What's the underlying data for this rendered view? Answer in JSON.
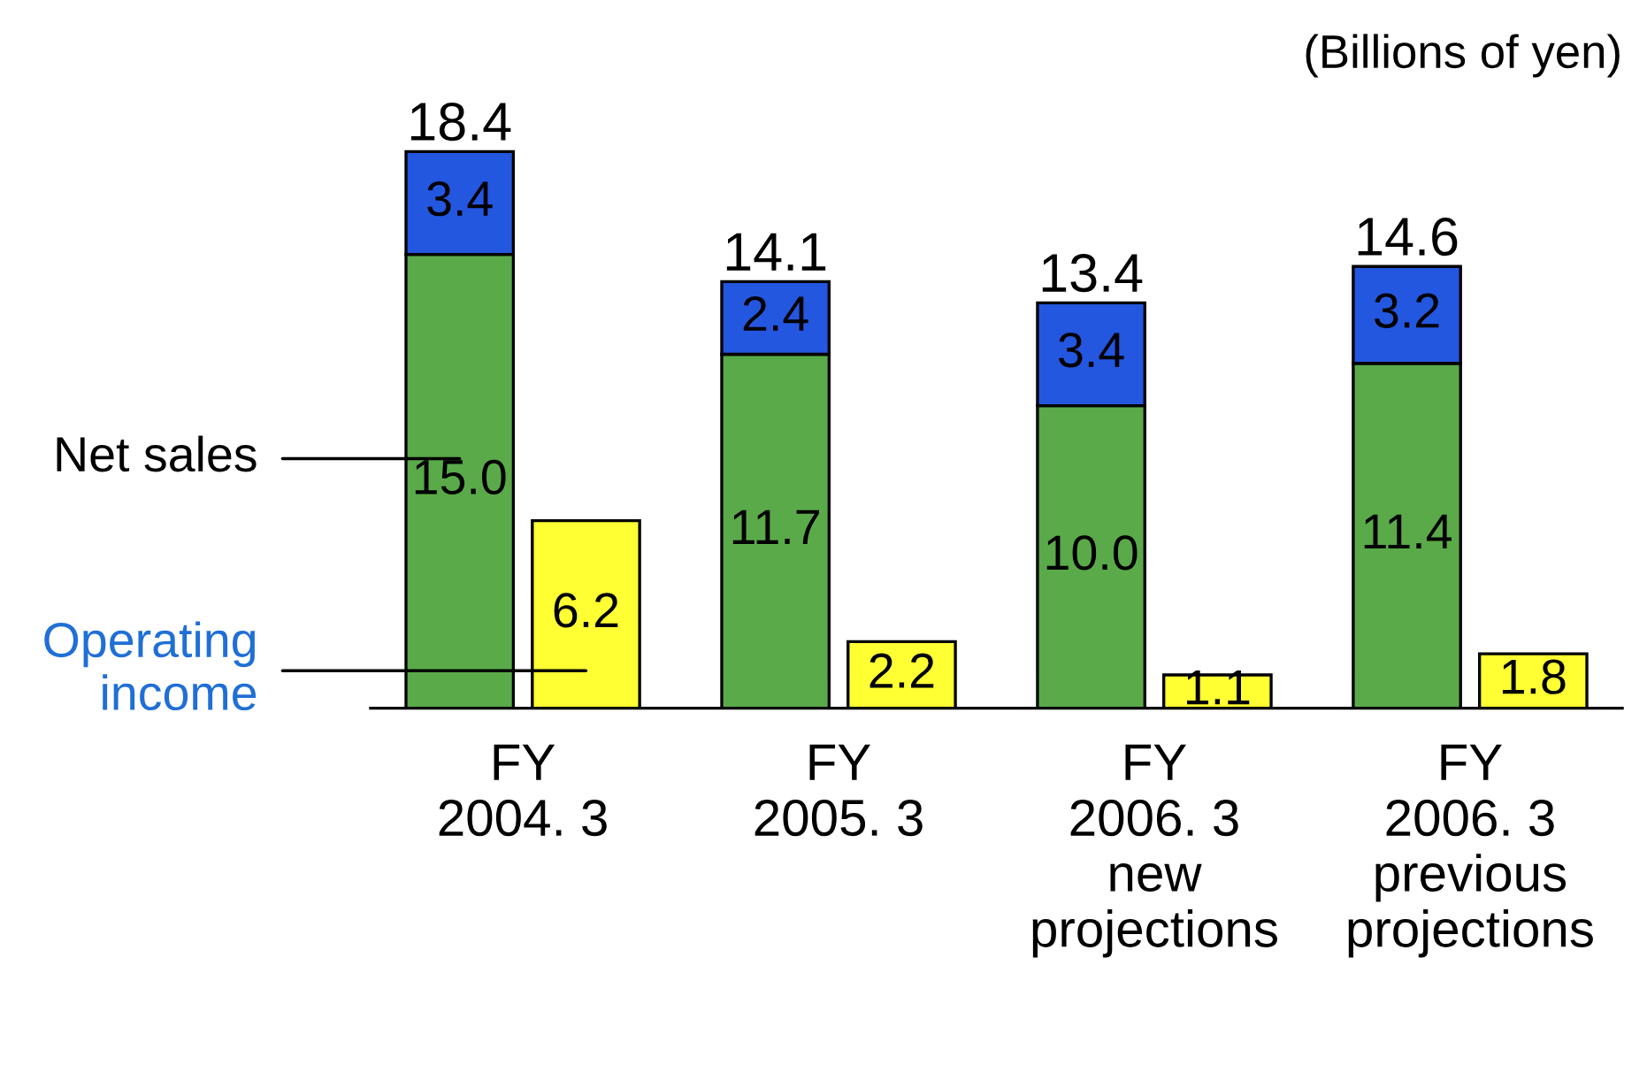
{
  "chart_data": [
    {
      "type": "bar",
      "stacked": true,
      "data_labels": true,
      "legend": "left",
      "categories": [
        "FY\n2004. 3",
        "FY\n2005. 3",
        "FY\n2006. 3\nnew\nprojections",
        "FY\n2006. 3\nprevious\nprojections"
      ],
      "series": [
        {
          "name": "Net sales",
          "color": "#5aaa4a",
          "values": [
            15.0,
            11.7,
            10.0,
            11.4
          ],
          "value_labels": [
            "15.0",
            "11.7",
            "10.0",
            "11.4"
          ]
        },
        {
          "color": "#2457e0",
          "values": [
            3.4,
            2.4,
            3.4,
            3.2
          ]
        }
      ],
      "totals": [
        "18.4",
        "14.1",
        "13.4",
        "14.6"
      ],
      "annotations": [
        "(Billions of yen)"
      ]
    },
    {
      "type": "bar",
      "data_labels": true,
      "legend": "left",
      "categories": [
        null,
        null,
        null,
        null
      ],
      "series": [
        {
          "name": "Operating income",
          "color": "#ffff33",
          "values": [
            6.2,
            2.2,
            1.1,
            1.8
          ]
        }
      ]
    }
  ]
}
